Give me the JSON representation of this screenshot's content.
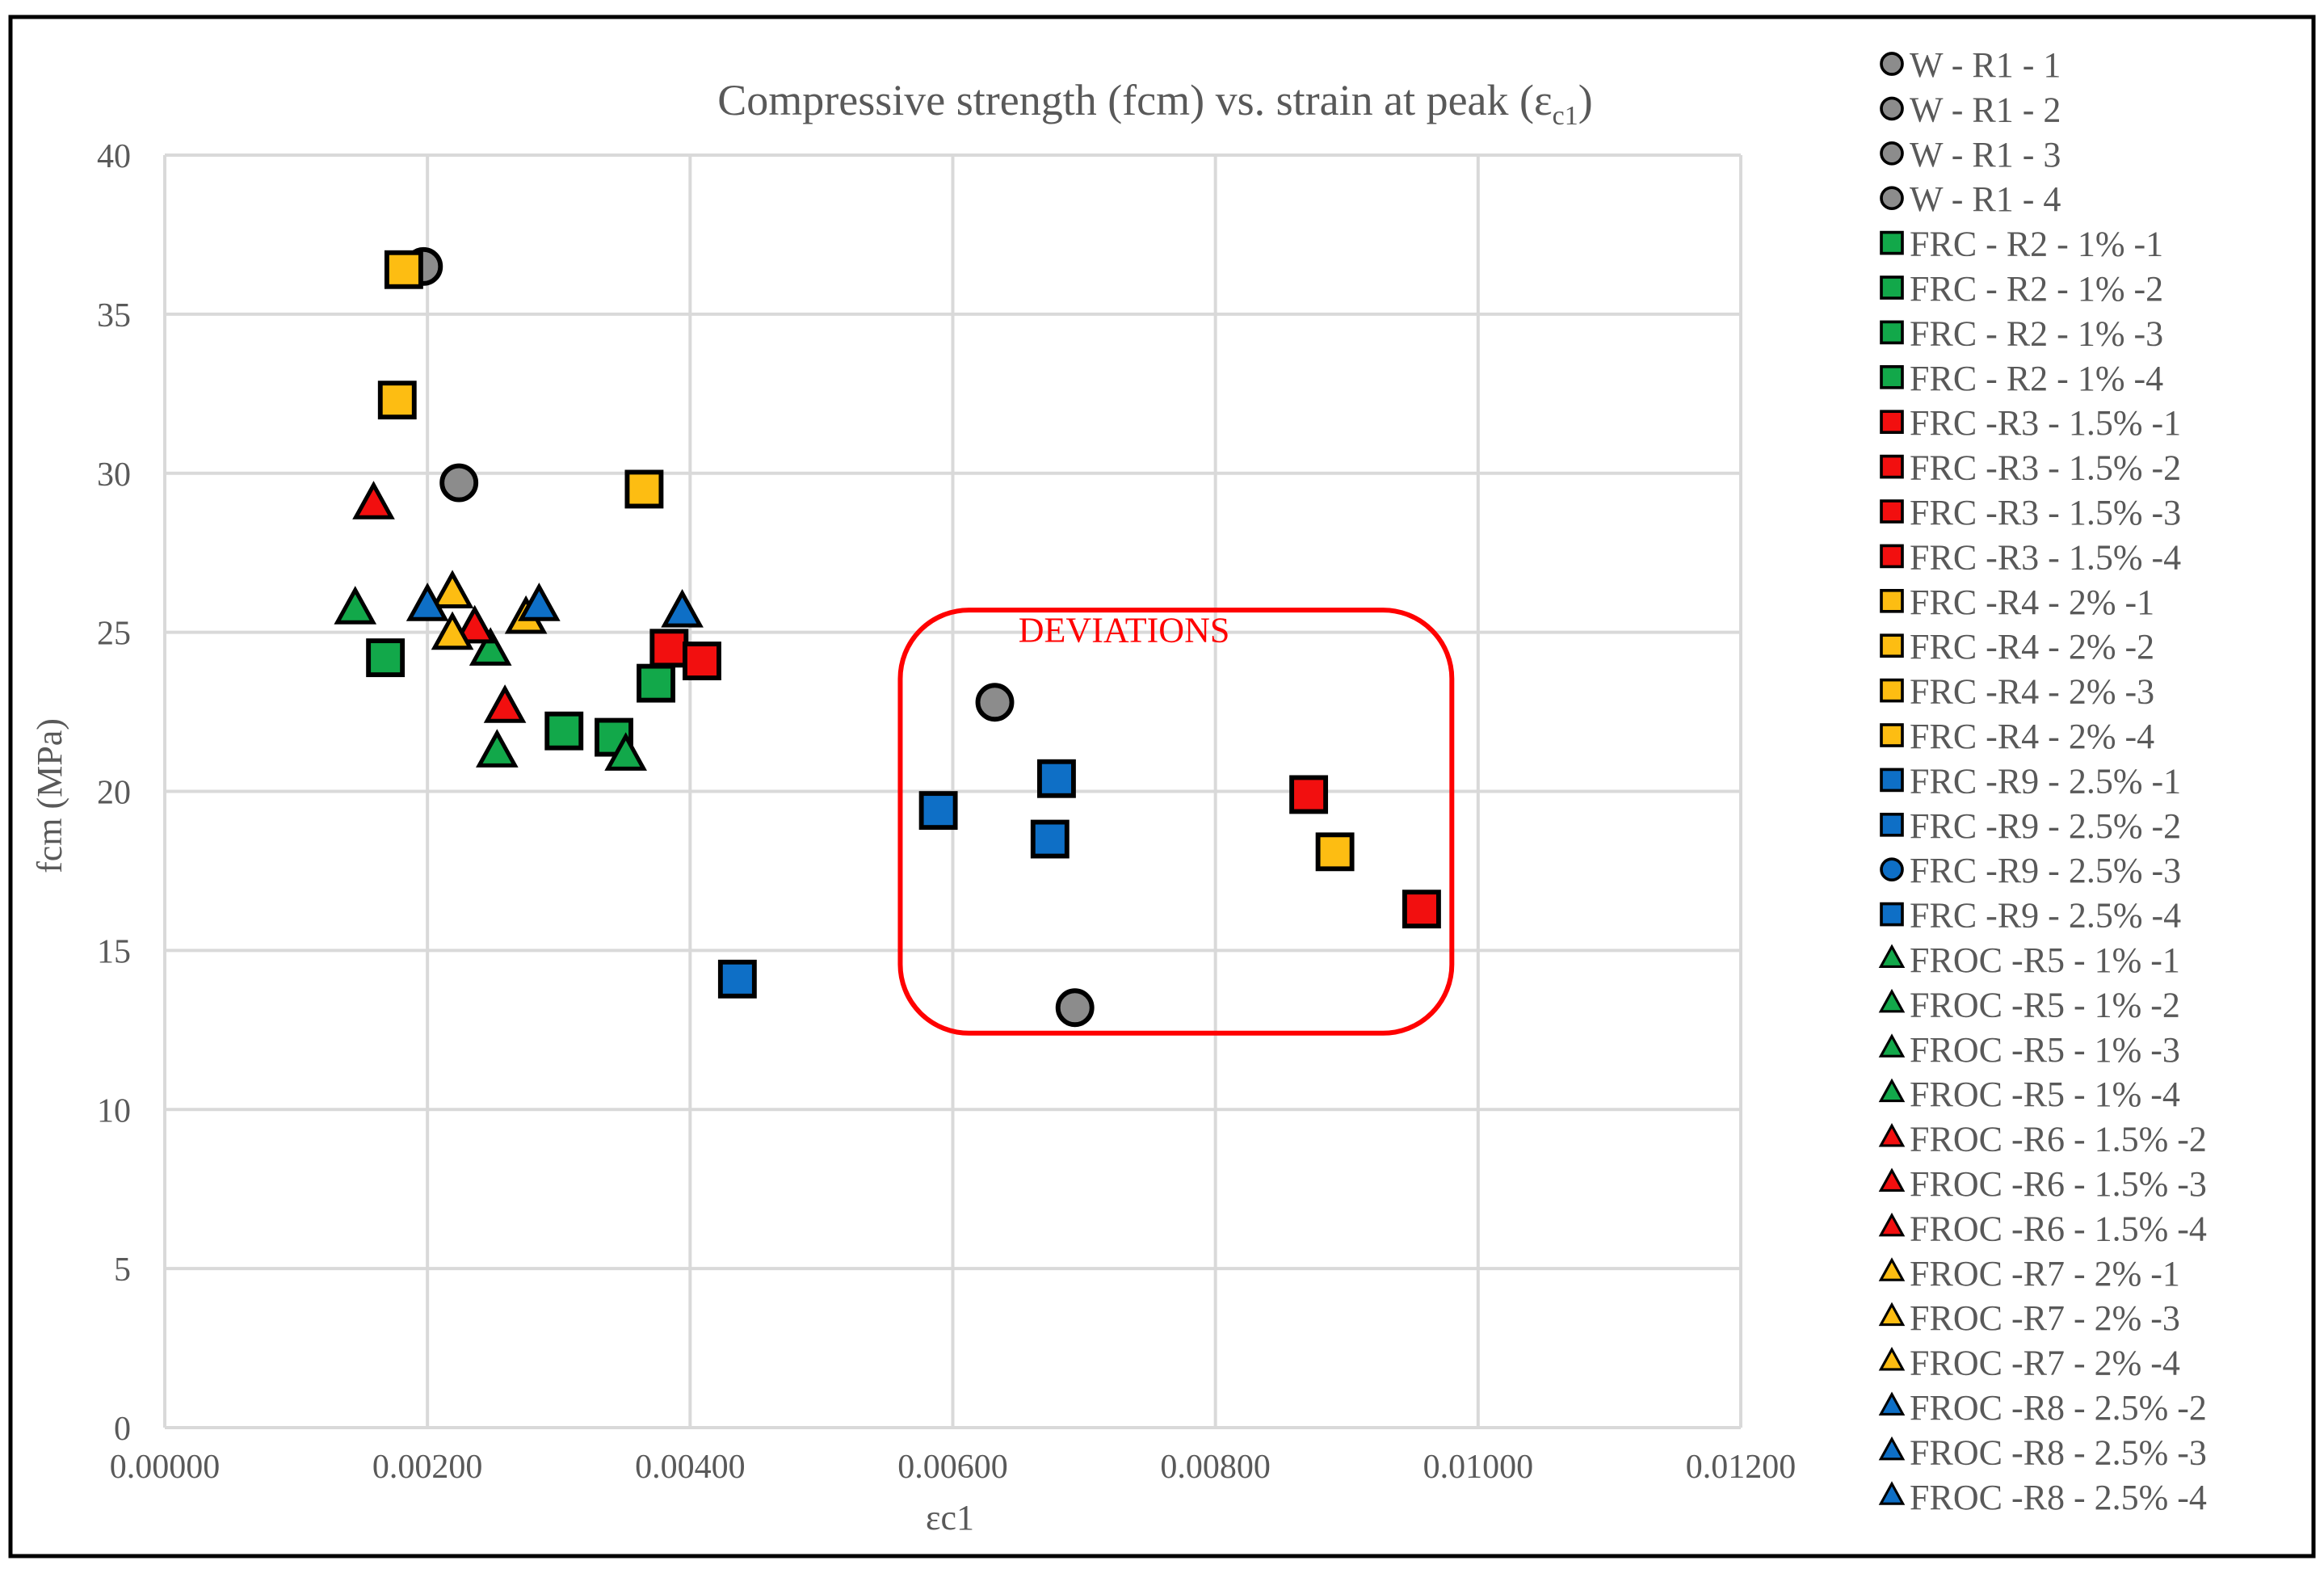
{
  "chart_data": {
    "type": "scatter",
    "title_main": "Compressive strength (fcm) vs. strain at peak (ε",
    "title_sub": "c1",
    "title_end": ")",
    "xlabel": "εc1",
    "ylabel": "fcm (MPa)",
    "xlim": [
      0,
      0.012
    ],
    "ylim": [
      0,
      40
    ],
    "x_ticks": [
      0,
      0.002,
      0.004,
      0.006,
      0.008,
      0.01,
      0.012
    ],
    "x_tick_labels": [
      "0.00000",
      "0.00200",
      "0.00400",
      "0.00600",
      "0.00800",
      "0.01000",
      "0.01200"
    ],
    "y_ticks": [
      0,
      5,
      10,
      15,
      20,
      25,
      30,
      35,
      40
    ],
    "y_tick_labels": [
      "0",
      "5",
      "10",
      "15",
      "20",
      "25",
      "30",
      "35",
      "40"
    ],
    "grid": true,
    "legend_position": "right",
    "annotation": "DEVIATIONS",
    "deviation_region": {
      "x": [
        0.0056,
        0.0098
      ],
      "y": [
        12.4,
        25.7
      ]
    },
    "colors": {
      "gray": "#8c8c8c",
      "green": "#12a84a",
      "red": "#f20f0f",
      "yellow": "#fdbd12",
      "blue": "#0e6fc6",
      "outline": "#000000",
      "grid": "#d9d9d9",
      "annotation": "#ff0000",
      "text": "#595959"
    },
    "series": [
      {
        "name": "W - R1 - 1",
        "marker": "circle",
        "color": "gray",
        "points": [
          [
            0.00197,
            36.5
          ]
        ]
      },
      {
        "name": "W - R1 - 2",
        "marker": "circle",
        "color": "gray",
        "points": [
          [
            0.00224,
            29.7
          ]
        ]
      },
      {
        "name": "W - R1 - 3",
        "marker": "circle",
        "color": "gray",
        "points": [
          [
            0.00632,
            22.8
          ]
        ]
      },
      {
        "name": "W - R1 - 4",
        "marker": "circle",
        "color": "gray",
        "points": [
          [
            0.00693,
            13.2
          ]
        ]
      },
      {
        "name": "FRC - R2 - 1% -1",
        "marker": "square",
        "color": "green",
        "points": [
          [
            0.00168,
            24.2
          ]
        ]
      },
      {
        "name": "FRC - R2 - 1% -2",
        "marker": "square",
        "color": "green",
        "points": [
          [
            0.00304,
            21.9
          ]
        ]
      },
      {
        "name": "FRC - R2 - 1% -3",
        "marker": "square",
        "color": "green",
        "points": [
          [
            0.00342,
            21.7
          ]
        ]
      },
      {
        "name": "FRC - R2 - 1% -4",
        "marker": "square",
        "color": "green",
        "points": [
          [
            0.00374,
            23.4
          ]
        ]
      },
      {
        "name": "FRC -R3 - 1.5% -1",
        "marker": "square",
        "color": "red",
        "points": [
          [
            0.00384,
            24.5
          ]
        ]
      },
      {
        "name": "FRC -R3 - 1.5% -2",
        "marker": "square",
        "color": "red",
        "points": [
          [
            0.00409,
            24.1
          ]
        ]
      },
      {
        "name": "FRC -R3 - 1.5% -3",
        "marker": "square",
        "color": "red",
        "points": [
          [
            0.00871,
            19.9
          ]
        ]
      },
      {
        "name": "FRC -R3 - 1.5% -4",
        "marker": "square",
        "color": "red",
        "points": [
          [
            0.00957,
            16.3
          ]
        ]
      },
      {
        "name": "FRC -R4 - 2% -1",
        "marker": "square",
        "color": "yellow",
        "points": [
          [
            0.00182,
            36.4
          ]
        ]
      },
      {
        "name": "FRC -R4 - 2% -2",
        "marker": "square",
        "color": "yellow",
        "points": [
          [
            0.00177,
            32.3
          ]
        ]
      },
      {
        "name": "FRC -R4 - 2% -3",
        "marker": "square",
        "color": "yellow",
        "points": [
          [
            0.00365,
            29.5
          ]
        ]
      },
      {
        "name": "FRC -R4 - 2% -4",
        "marker": "square",
        "color": "yellow",
        "points": [
          [
            0.00891,
            18.1
          ]
        ]
      },
      {
        "name": "FRC -R9 - 2.5% -1",
        "marker": "square",
        "color": "blue",
        "points": [
          [
            0.00589,
            19.4
          ]
        ]
      },
      {
        "name": "FRC -R9 - 2.5% -2",
        "marker": "square",
        "color": "blue",
        "points": [
          [
            0.00674,
            18.5
          ]
        ]
      },
      {
        "name": "FRC -R9 - 2.5% -3",
        "marker": "circle",
        "color": "blue",
        "points": []
      },
      {
        "name": "FRC -R9 - 2.5% -4",
        "marker": "square",
        "color": "blue",
        "points": [
          [
            0.00679,
            20.4
          ],
          [
            0.00436,
            14.1
          ]
        ]
      },
      {
        "name": "FROC -R5 - 1% -1",
        "marker": "triangle",
        "color": "green",
        "points": [
          [
            0.00145,
            25.7
          ]
        ]
      },
      {
        "name": "FROC -R5 - 1% -2",
        "marker": "triangle",
        "color": "green",
        "points": [
          [
            0.00248,
            24.4
          ]
        ]
      },
      {
        "name": "FROC -R5 - 1% -3",
        "marker": "triangle",
        "color": "green",
        "points": [
          [
            0.00253,
            21.2
          ]
        ]
      },
      {
        "name": "FROC -R5 - 1% -4",
        "marker": "triangle",
        "color": "green",
        "points": [
          [
            0.00351,
            21.1
          ]
        ]
      },
      {
        "name": "FROC -R6 - 1.5% -2",
        "marker": "triangle",
        "color": "red",
        "points": [
          [
            0.00159,
            29.0
          ]
        ]
      },
      {
        "name": "FROC -R6 - 1.5% -3",
        "marker": "triangle",
        "color": "red",
        "points": [
          [
            0.00236,
            25.1
          ]
        ]
      },
      {
        "name": "FROC -R6 - 1.5% -4",
        "marker": "triangle",
        "color": "red",
        "points": [
          [
            0.00259,
            22.6
          ]
        ]
      },
      {
        "name": "FROC -R7 - 2% -1",
        "marker": "triangle",
        "color": "yellow",
        "points": [
          [
            0.00219,
            26.2
          ]
        ]
      },
      {
        "name": "FROC -R7 - 2% -3",
        "marker": "triangle",
        "color": "yellow",
        "points": [
          [
            0.00219,
            24.9
          ]
        ]
      },
      {
        "name": "FROC -R7 - 2% -4",
        "marker": "triangle",
        "color": "yellow",
        "points": [
          [
            0.00275,
            25.4
          ]
        ]
      },
      {
        "name": "FROC -R8 - 2.5% -2",
        "marker": "triangle",
        "color": "blue",
        "points": [
          [
            0.002,
            25.8
          ]
        ]
      },
      {
        "name": "FROC -R8 - 2.5% -3",
        "marker": "triangle",
        "color": "blue",
        "points": [
          [
            0.00285,
            25.8
          ]
        ]
      },
      {
        "name": "FROC -R8 - 2.5% -4",
        "marker": "triangle",
        "color": "blue",
        "points": [
          [
            0.00394,
            25.6
          ]
        ]
      }
    ]
  }
}
